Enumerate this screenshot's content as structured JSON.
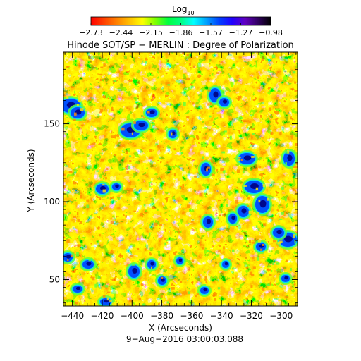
{
  "colorbar": {
    "label_main": "Log",
    "label_sub": "10",
    "tick_labels": [
      "−2.73",
      "−2.44",
      "−2.15",
      "−1.86",
      "−1.57",
      "−1.27",
      "−0.98"
    ],
    "range": [
      -2.73,
      -0.98
    ],
    "colormap": [
      "#ff0000",
      "#ff4000",
      "#ff8000",
      "#ffbf00",
      "#ffff00",
      "#80ff00",
      "#00ff40",
      "#00ff80",
      "#00ffff",
      "#00a0ff",
      "#0040ff",
      "#2000ff",
      "#6000c0",
      "#300060",
      "#000000"
    ]
  },
  "title": "Hinode SOT/SP − MERLIN : Degree of Polarization",
  "xaxis": {
    "label": "X (Arcseconds)",
    "ticks": [
      "−440",
      "−420",
      "−400",
      "−380",
      "−360",
      "−340",
      "−320",
      "−300"
    ],
    "tick_values": [
      -440,
      -420,
      -400,
      -380,
      -360,
      -340,
      -320,
      -300
    ],
    "range": [
      -446,
      -289
    ]
  },
  "yaxis": {
    "label": "Y (Arcseconds)",
    "ticks": [
      "50",
      "100",
      "150"
    ],
    "tick_values": [
      50,
      100,
      150
    ],
    "range": [
      33,
      196
    ]
  },
  "timestamp": "9−Aug−2016 03:00:03.088",
  "map_colors": {
    "background": "#ff2a00",
    "mid": "#ff8c00",
    "highlight": "#ffe600",
    "green": "#5aff3c",
    "blue": "#0050ff",
    "dark": "#000080"
  }
}
